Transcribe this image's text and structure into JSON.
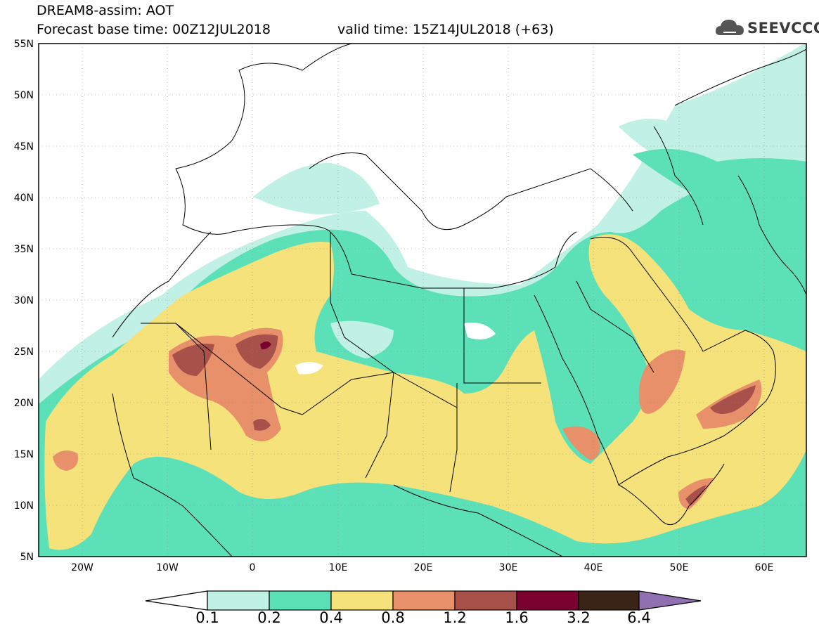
{
  "header": {
    "title_line1": "DREAM8-assim: AOT",
    "title_line2": "Forecast base time: 00Z12JUL2018",
    "valid_time": "valid time: 15Z14JUL2018 (+63)",
    "logo_text": "SEEVCCC"
  },
  "axes": {
    "lat_labels": [
      "55N",
      "50N",
      "45N",
      "40N",
      "35N",
      "30N",
      "25N",
      "20N",
      "15N",
      "10N",
      "5N"
    ],
    "lon_labels": [
      "20W",
      "10W",
      "0",
      "10E",
      "20E",
      "30E",
      "40E",
      "50E",
      "60E"
    ],
    "lat_range": [
      5,
      55
    ],
    "lon_range": [
      -25,
      65
    ]
  },
  "colorbar": {
    "thresholds": [
      "0.1",
      "0.2",
      "0.4",
      "0.8",
      "1.2",
      "1.6",
      "3.2",
      "6.4"
    ],
    "colors": [
      "#ffffff",
      "#c0f0e6",
      "#5ce0b8",
      "#f5e27a",
      "#e8906a",
      "#a8504a",
      "#7a0030",
      "#3a2418",
      "#9070b0"
    ]
  },
  "legend_colors": {
    "c01": "#c0f0e6",
    "c02": "#5ce0b8",
    "c04": "#f5e27a",
    "c08": "#e8906a",
    "c12": "#a8504a",
    "c16": "#7a0030",
    "c32": "#3a2418"
  }
}
